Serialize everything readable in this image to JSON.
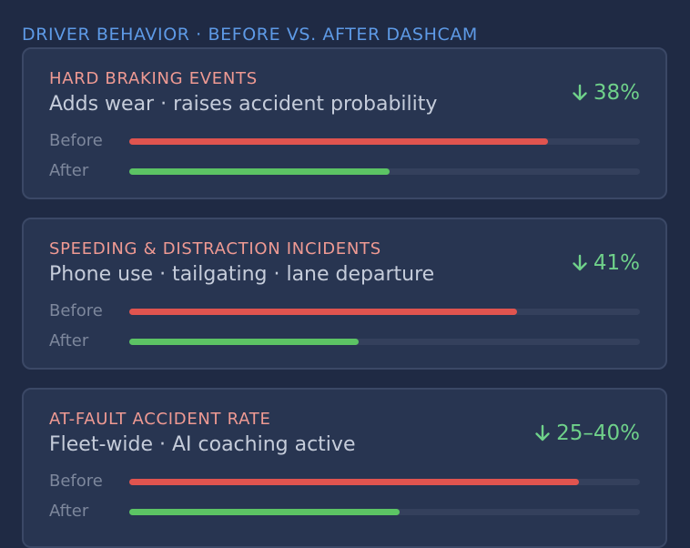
{
  "section_title": "DRIVER BEHAVIOR · BEFORE VS. AFTER DASHCAM",
  "colors": {
    "background": "#1f2a44",
    "card": "#283551",
    "title_accent": "#ef9a93",
    "delta": "#6fd18a",
    "before_bar": "#e0544f",
    "after_bar": "#5cc464",
    "section_title": "#5e9ae6"
  },
  "cards": [
    {
      "title": "HARD BRAKING EVENTS",
      "subtitle": "Adds wear · raises accident probability",
      "delta_icon": "arrow-down-icon",
      "delta": "38%",
      "before_label": "Before",
      "after_label": "After",
      "before_level": 0.82,
      "after_level": 0.51
    },
    {
      "title": "SPEEDING & DISTRACTION INCIDENTS",
      "subtitle": "Phone use · tailgating · lane departure",
      "delta_icon": "arrow-down-icon",
      "delta": "41%",
      "before_label": "Before",
      "after_label": "After",
      "before_level": 0.76,
      "after_level": 0.45
    },
    {
      "title": "AT-FAULT ACCIDENT RATE",
      "subtitle": "Fleet-wide · AI coaching active",
      "delta_icon": "arrow-down-icon",
      "delta": "25–40%",
      "before_label": "Before",
      "after_label": "After",
      "before_level": 0.88,
      "after_level": 0.53
    }
  ]
}
